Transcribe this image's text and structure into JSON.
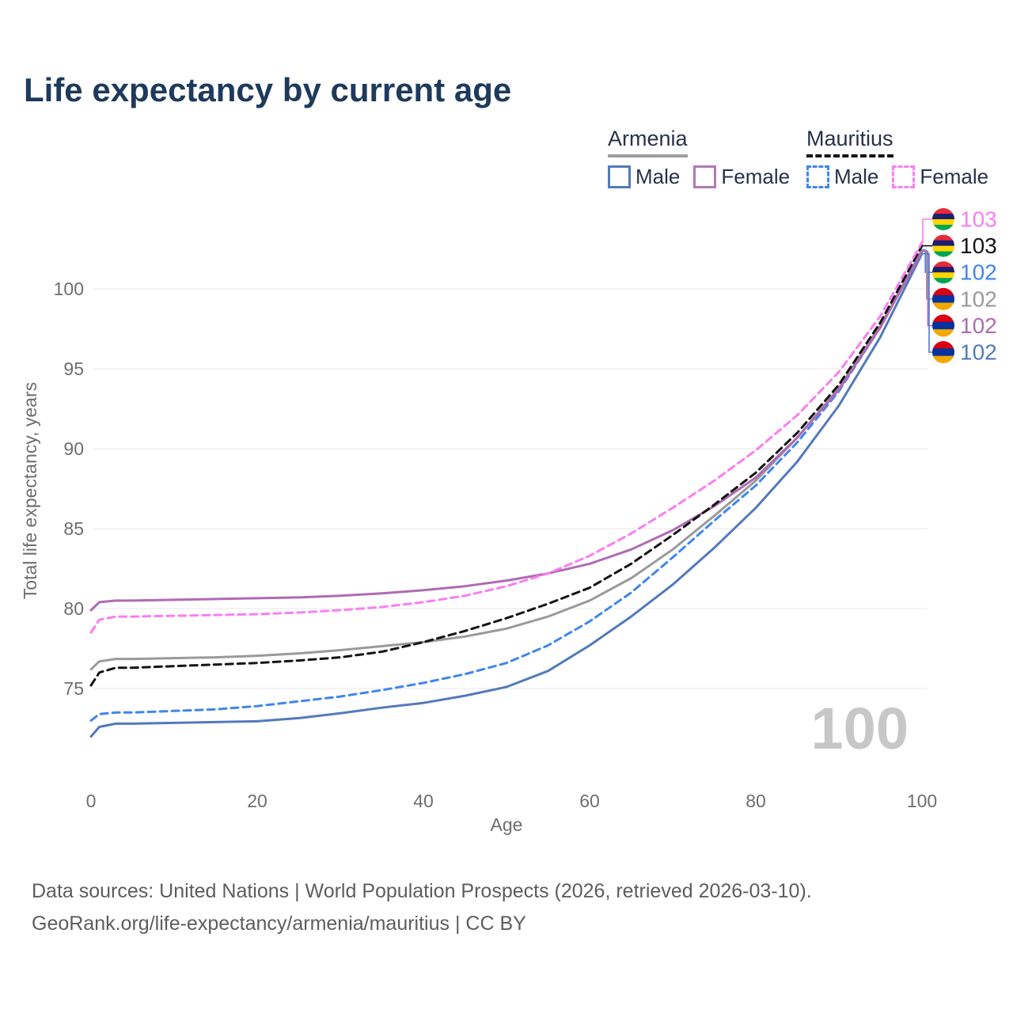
{
  "title": "Life expectancy by current age",
  "theme": {
    "title_color": "#1e3a5c",
    "legend_text_color": "#27324b",
    "axis_text_color": "#6e6e6e",
    "grid_color": "#ececec",
    "hover_label_color": "#c7c7c7",
    "footer_color": "#5d5d5d"
  },
  "legend": {
    "groups": [
      {
        "name": "Armenia",
        "line_style": "solid",
        "underline_color": "#9e9e9e",
        "items": [
          {
            "label": "Male",
            "color": "#527abc",
            "dashed": false
          },
          {
            "label": "Female",
            "color": "#b277b7",
            "dashed": false
          }
        ]
      },
      {
        "name": "Mauritius",
        "line_style": "dashed",
        "underline_color": "#141414",
        "items": [
          {
            "label": "Male",
            "color": "#3f86f0",
            "dashed": true
          },
          {
            "label": "Female",
            "color": "#fb7df2",
            "dashed": true
          }
        ]
      }
    ]
  },
  "hover": {
    "age_label": "100"
  },
  "flags": {
    "mauritius": [
      "#EA2839",
      "#1A206D",
      "#FFD500",
      "#00A551"
    ],
    "armenia": [
      "#D90012",
      "#0033A0",
      "#F2A800"
    ]
  },
  "end_labels": [
    {
      "series": "Mauritius Female",
      "value": "103",
      "color": "#fb7df2",
      "flag": "mauritius"
    },
    {
      "series": "Mauritius Both sexes",
      "value": "103",
      "color": "#141414",
      "flag": "mauritius"
    },
    {
      "series": "Mauritius Male",
      "value": "102",
      "color": "#3f86f0",
      "flag": "mauritius"
    },
    {
      "series": "Armenia Both sexes",
      "value": "102",
      "color": "#9a9a9a",
      "flag": "armenia"
    },
    {
      "series": "Armenia Female",
      "value": "102",
      "color": "#b06ab3",
      "flag": "armenia"
    },
    {
      "series": "Armenia Male",
      "value": "102",
      "color": "#527abc",
      "flag": "armenia"
    }
  ],
  "chart_data": {
    "type": "line",
    "title": "Life expectancy by current age",
    "xlabel": "Age",
    "ylabel": "Total life expectancy, years",
    "xlim": [
      0,
      100
    ],
    "ylim": [
      71,
      104
    ],
    "xticks": [
      0,
      20,
      40,
      60,
      80,
      100
    ],
    "yticks": [
      75,
      80,
      85,
      90,
      95,
      100
    ],
    "grid": "horizontal",
    "legend_position": "top-right",
    "x": [
      0,
      1,
      3,
      5,
      10,
      15,
      20,
      25,
      30,
      35,
      40,
      45,
      50,
      55,
      60,
      65,
      70,
      75,
      80,
      85,
      90,
      95,
      100
    ],
    "series": [
      {
        "name": "Armenia Male",
        "color": "#527abc",
        "dash": false,
        "values": [
          72.0,
          72.6,
          72.8,
          72.8,
          72.85,
          72.9,
          72.95,
          73.15,
          73.45,
          73.8,
          74.1,
          74.55,
          75.1,
          76.1,
          77.7,
          79.5,
          81.5,
          83.8,
          86.3,
          89.2,
          92.7,
          97.0,
          102.2
        ]
      },
      {
        "name": "Mauritius Male",
        "color": "#3f86f0",
        "dash": true,
        "values": [
          73.0,
          73.4,
          73.5,
          73.5,
          73.6,
          73.7,
          73.9,
          74.2,
          74.5,
          74.9,
          75.35,
          75.9,
          76.6,
          77.7,
          79.2,
          81.0,
          83.2,
          85.5,
          87.7,
          90.4,
          93.6,
          97.6,
          102.45
        ]
      },
      {
        "name": "Armenia Both sexes",
        "color": "#9a9a9a",
        "dash": false,
        "values": [
          76.2,
          76.7,
          76.85,
          76.85,
          76.9,
          76.95,
          77.05,
          77.2,
          77.4,
          77.65,
          77.9,
          78.25,
          78.75,
          79.5,
          80.5,
          81.9,
          83.7,
          85.8,
          88.0,
          90.7,
          93.8,
          97.7,
          102.4
        ]
      },
      {
        "name": "Armenia Female",
        "color": "#b06ab3",
        "dash": false,
        "values": [
          79.9,
          80.4,
          80.5,
          80.5,
          80.55,
          80.6,
          80.65,
          80.7,
          80.8,
          80.95,
          81.15,
          81.4,
          81.75,
          82.2,
          82.8,
          83.7,
          84.9,
          86.4,
          88.2,
          90.7,
          93.7,
          97.6,
          102.35
        ]
      },
      {
        "name": "Mauritius Both sexes",
        "color": "#141414",
        "dash": true,
        "values": [
          75.2,
          76.0,
          76.3,
          76.3,
          76.4,
          76.5,
          76.6,
          76.75,
          76.95,
          77.3,
          77.9,
          78.6,
          79.4,
          80.3,
          81.3,
          82.8,
          84.6,
          86.5,
          88.5,
          91.0,
          94.0,
          97.9,
          102.7
        ]
      },
      {
        "name": "Mauritius Female",
        "color": "#fb7df2",
        "dash": true,
        "values": [
          78.5,
          79.3,
          79.5,
          79.5,
          79.55,
          79.6,
          79.65,
          79.75,
          79.9,
          80.1,
          80.4,
          80.8,
          81.4,
          82.2,
          83.3,
          84.7,
          86.3,
          88.0,
          89.9,
          92.1,
          94.8,
          98.3,
          102.9
        ]
      }
    ]
  },
  "footer": {
    "line1": "Data sources: United Nations | World Population Prospects (2026, retrieved 2026-03-10).",
    "line2": "GeoRank.org/life-expectancy/armenia/mauritius | CC BY"
  }
}
